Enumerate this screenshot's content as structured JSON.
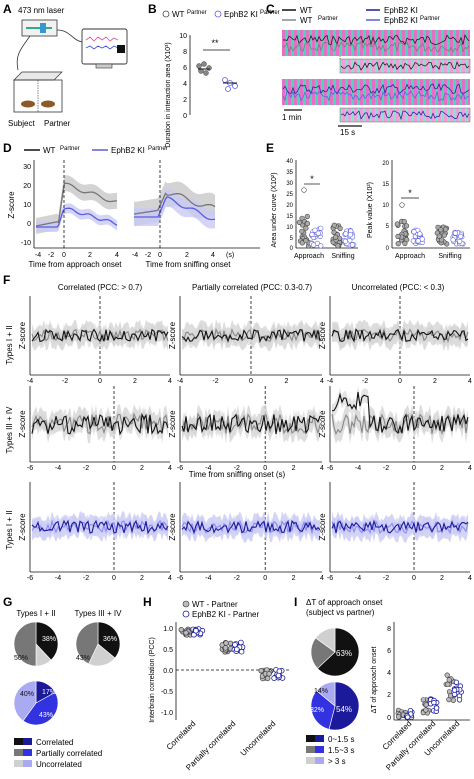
{
  "colors": {
    "wt": "#222222",
    "ki": "#5a5ce0",
    "ki_light": "#a9aaf2",
    "wt_gray": "#888888",
    "band": "#c8c8c8",
    "ki_band": "#c9c9f5",
    "dark_blue": "#1a1a9a",
    "mid_blue": "#3232e0",
    "cyan": "#3fcfb0",
    "magenta": "#e060c0"
  },
  "panels": {
    "A": "A",
    "B": "B",
    "C": "C",
    "D": "D",
    "E": "E",
    "F": "F",
    "G": "G",
    "H": "H",
    "I": "I"
  },
  "A": {
    "laser": "473 nm laser",
    "subject": "Subject",
    "partner": "Partner"
  },
  "B": {
    "legend_wt": "WT",
    "legend_wt_sup": "Partner",
    "legend_ki": "EphB2 KI",
    "legend_ki_sup": "Partner",
    "sig": "**",
    "ylabel": "Duration in interaction area (X10³)",
    "yticks": [
      "10",
      "8",
      "6",
      "4",
      "2",
      "0"
    ]
  },
  "C": {
    "legend_wt": "WT",
    "legend_wt_p": "WT",
    "legend_wt_p_sup": "Partner",
    "legend_ki": "EphB2 KI",
    "legend_ki_p": "EphB2 KI",
    "legend_ki_p_sup": "Partner",
    "scale1": "1 min",
    "scale2": "15 s"
  },
  "D": {
    "legend_wt": "WT",
    "legend_wt_sup": "Partner",
    "legend_ki": "EphB2 KI",
    "legend_ki_sup": "Partner",
    "ylabel": "Z-score",
    "yticks": [
      "30",
      "20",
      "10",
      "0",
      "-10"
    ],
    "xticks_a": [
      "-4",
      "-2",
      "0",
      "2",
      "4"
    ],
    "xticks_b": [
      "-4",
      "-2",
      "0",
      "2",
      "4"
    ],
    "xunit": "(s)",
    "xlabel_a": "Time from approach onset",
    "xlabel_b": "Time from sniffing onset"
  },
  "E": {
    "ylabel1": "Area under curve (X10²)",
    "yticks1": [
      "40",
      "35",
      "30",
      "25",
      "20",
      "15",
      "10",
      "5",
      "0"
    ],
    "ylabel2": "Peak value (X10²)",
    "yticks2": [
      "20",
      "15",
      "10",
      "5",
      "0"
    ],
    "sig": "*",
    "cats": [
      "Approach",
      "Sniffing"
    ]
  },
  "F": {
    "col_titles": [
      "Correlated (PCC: > 0.7)",
      "Partially correlated (PCC: 0.3-0.7)",
      "Uncorrelated (PCC: < 0.3)"
    ],
    "row_labels": [
      "Types I + II",
      "Types III + IV",
      "Types I + II"
    ],
    "ylabel": "Z-score",
    "xticks_row1": [
      "-4",
      "-2",
      "0",
      "2",
      "4"
    ],
    "xticks": [
      "-6",
      "-4",
      "-2",
      "0",
      "2",
      "4"
    ],
    "xlabel": "Time from sniffing onset (s)"
  },
  "G": {
    "title1": "Types I + II",
    "title2": "Types III + IV",
    "pie1": {
      "dark": "38%",
      "mid": "50%"
    },
    "pie2": {
      "dark": "36%",
      "mid": "43%"
    },
    "pie3": {
      "a": "17%",
      "b": "43%",
      "c": "40%"
    },
    "legend": [
      "Correlated",
      "Partially correlated",
      "Uncorrelated"
    ]
  },
  "H": {
    "legend_wt": "WT - Partner",
    "legend_ki": "EphB2 KI - Partner",
    "ylabel": "Interbrain correlation (PCC)",
    "yticks": [
      "1.0",
      "0.5",
      "0.0",
      "-0.5",
      "-1.0"
    ],
    "cats": [
      "Correlated",
      "Partially correlated",
      "Uncorrelated"
    ]
  },
  "I": {
    "title1": "ΔT of approach onset",
    "title2": "(subject vs partner)",
    "pie1": {
      "a": "63%"
    },
    "pie2": {
      "a": "54%",
      "b": "32%",
      "c": "14%"
    },
    "legend": [
      "0~1.5 s",
      "1.5~3 s",
      "> 3 s"
    ],
    "ylabel": "ΔT of approach onset",
    "yticks": [
      "8",
      "6",
      "4",
      "2",
      "0"
    ],
    "cats": [
      "Correlated",
      "Partially correlated",
      "Uncorrelated"
    ]
  }
}
